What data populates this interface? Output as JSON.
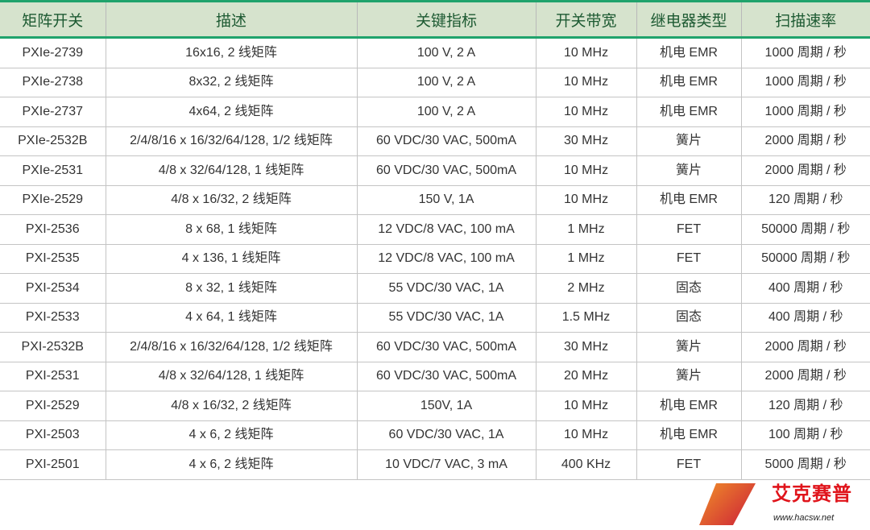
{
  "headers": [
    "矩阵开关",
    "描述",
    "关键指标",
    "开关带宽",
    "继电器类型",
    "扫描速率"
  ],
  "rows": [
    [
      "PXIe-2739",
      "16x16, 2 线矩阵",
      "100 V, 2 A",
      "10 MHz",
      "机电 EMR",
      "1000 周期 / 秒"
    ],
    [
      "PXIe-2738",
      "8x32, 2 线矩阵",
      "100 V, 2 A",
      "10 MHz",
      "机电 EMR",
      "1000 周期 / 秒"
    ],
    [
      "PXIe-2737",
      "4x64, 2 线矩阵",
      "100 V, 2 A",
      "10 MHz",
      "机电 EMR",
      "1000 周期 / 秒"
    ],
    [
      "PXIe-2532B",
      "2/4/8/16 x 16/32/64/128, 1/2 线矩阵",
      "60 VDC/30 VAC, 500mA",
      "30 MHz",
      "簧片",
      "2000 周期 / 秒"
    ],
    [
      "PXIe-2531",
      "4/8 x 32/64/128, 1 线矩阵",
      "60 VDC/30 VAC, 500mA",
      "10 MHz",
      "簧片",
      "2000 周期 / 秒"
    ],
    [
      "PXIe-2529",
      "4/8 x 16/32, 2 线矩阵",
      "150 V, 1A",
      "10 MHz",
      "机电 EMR",
      "120 周期 / 秒"
    ],
    [
      "PXI-2536",
      "8 x 68, 1 线矩阵",
      "12 VDC/8 VAC, 100 mA",
      "1 MHz",
      "FET",
      "50000 周期 / 秒"
    ],
    [
      "PXI-2535",
      "4 x 136, 1 线矩阵",
      "12 VDC/8 VAC, 100 mA",
      "1 MHz",
      "FET",
      "50000 周期 / 秒"
    ],
    [
      "PXI-2534",
      "8 x 32, 1 线矩阵",
      "55 VDC/30 VAC, 1A",
      "2 MHz",
      "固态",
      "400 周期 / 秒"
    ],
    [
      "PXI-2533",
      "4 x 64, 1 线矩阵",
      "55 VDC/30 VAC, 1A",
      "1.5 MHz",
      "固态",
      "400 周期 / 秒"
    ],
    [
      "PXI-2532B",
      "2/4/8/16 x 16/32/64/128, 1/2 线矩阵",
      "60 VDC/30 VAC, 500mA",
      "30 MHz",
      "簧片",
      "2000 周期 / 秒"
    ],
    [
      "PXI-2531",
      "4/8 x 32/64/128, 1 线矩阵",
      "60 VDC/30 VAC, 500mA",
      "20 MHz",
      "簧片",
      "2000 周期 / 秒"
    ],
    [
      "PXI-2529",
      "4/8 x 16/32, 2 线矩阵",
      "150V, 1A",
      "10 MHz",
      "机电 EMR",
      "120 周期 / 秒"
    ],
    [
      "PXI-2503",
      "4 x 6, 2 线矩阵",
      "60 VDC/30 VAC, 1A",
      "10 MHz",
      "机电 EMR",
      "100 周期 / 秒"
    ],
    [
      "PXI-2501",
      "4 x 6, 2 线矩阵",
      "10 VDC/7 VAC, 3 mA",
      "400 KHz",
      "FET",
      "5000 周期 / 秒"
    ]
  ],
  "watermark": {
    "name": "艾克赛普",
    "url": "www.hacsw.net"
  },
  "colors": {
    "header_bg": "#d6e3cd",
    "header_text": "#1d5a32",
    "accent": "#20a36c"
  }
}
